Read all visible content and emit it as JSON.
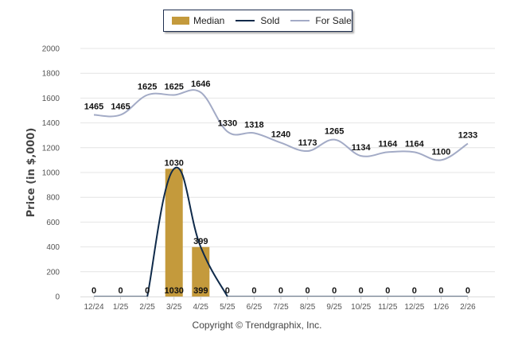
{
  "chart_data": {
    "type": "bar",
    "title": "",
    "xlabel": "",
    "ylabel": "Price (in $,000)",
    "ylim": [
      0,
      2000
    ],
    "yticks": [
      0,
      200,
      400,
      600,
      800,
      1000,
      1200,
      1400,
      1600,
      1800,
      2000
    ],
    "grid": true,
    "legend_position": "top-center",
    "categories": [
      "12/24",
      "1/25",
      "2/25",
      "3/25",
      "4/25",
      "5/25",
      "6/25",
      "7/25",
      "8/25",
      "9/25",
      "10/25",
      "11/25",
      "12/25",
      "1/26",
      "2/26"
    ],
    "series": [
      {
        "name": "Median",
        "kind": "bar",
        "color": "#c49a3c",
        "values": [
          0,
          0,
          0,
          1030,
          399,
          0,
          0,
          0,
          0,
          0,
          0,
          0,
          0,
          0,
          0
        ],
        "bottom_labels": [
          "0",
          "0",
          "0",
          "1030",
          "399",
          "0",
          "0",
          "0",
          "0",
          "0",
          "0",
          "0",
          "0",
          "0",
          "0"
        ]
      },
      {
        "name": "Sold",
        "kind": "line",
        "color": "#0f2a4a",
        "values": [
          0,
          0,
          0,
          1030,
          399,
          0,
          0,
          0,
          0,
          0,
          0,
          0,
          0,
          0,
          0
        ]
      },
      {
        "name": "For Sale",
        "kind": "line",
        "color": "#a3abc6",
        "values": [
          1465,
          1465,
          1625,
          1625,
          1646,
          1330,
          1318,
          1240,
          1173,
          1265,
          1134,
          1164,
          1164,
          1100,
          1233
        ]
      }
    ]
  },
  "legend": {
    "items": [
      {
        "label": "Median",
        "color": "#c49a3c",
        "type": "bar"
      },
      {
        "label": "Sold",
        "color": "#0f2a4a",
        "type": "line"
      },
      {
        "label": "For Sale",
        "color": "#a3abc6",
        "type": "line"
      }
    ]
  },
  "footer": {
    "copyright": "Copyright © Trendgraphix, Inc."
  }
}
